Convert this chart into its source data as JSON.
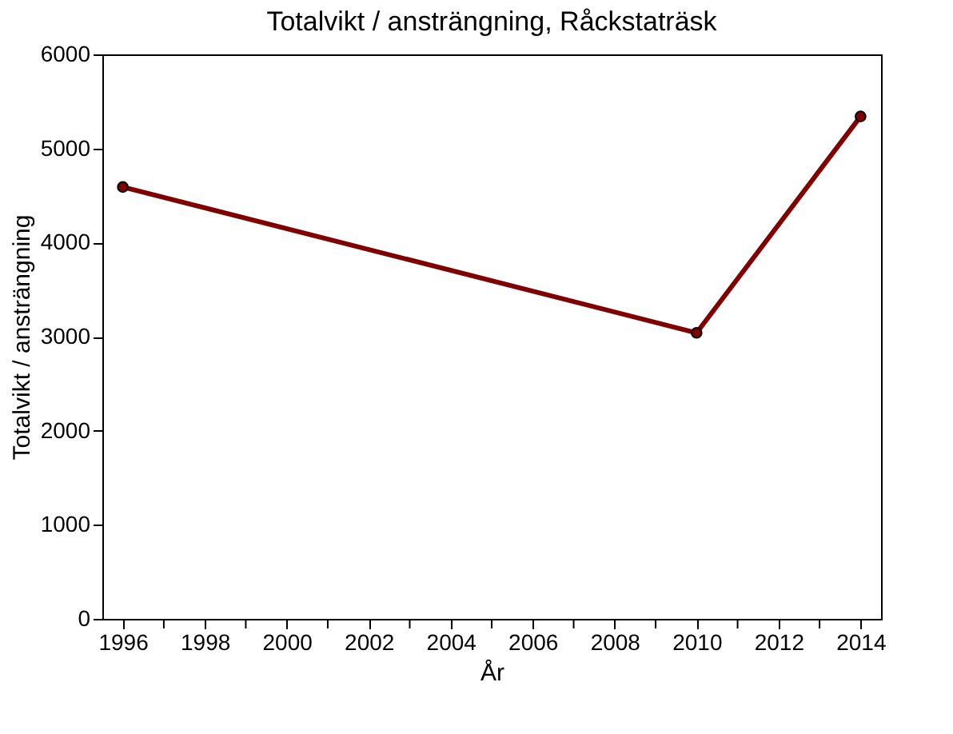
{
  "chart_data": {
    "type": "line",
    "title": "Totalvikt / ansträngning, Råckstaträsk",
    "xlabel": "År",
    "ylabel": "Totalvikt / ansträngning",
    "x": [
      1996,
      2010,
      2014
    ],
    "series": [
      {
        "color": "#800000",
        "values": [
          4590,
          3040,
          5340
        ]
      }
    ],
    "xlim": [
      1995.5,
      2014.5
    ],
    "xticks": [
      1996,
      {
        "value": 1997,
        "label": null
      },
      1998,
      {
        "value": 1999,
        "label": null
      },
      2000,
      {
        "value": 2001,
        "label": null
      },
      2002,
      {
        "value": 2003,
        "label": null
      },
      2004,
      {
        "value": 2005,
        "label": null
      },
      2006,
      {
        "value": 2007,
        "label": null
      },
      2008,
      {
        "value": 2009,
        "label": null
      },
      2010,
      {
        "value": 2011,
        "label": null
      },
      2012,
      {
        "value": 2013,
        "label": null
      },
      2014
    ],
    "ylim": [
      0,
      6000
    ],
    "yticks": [
      0,
      1000,
      2000,
      3000,
      4000,
      5000,
      6000
    ],
    "grid": false,
    "legend": false,
    "marker": "circle",
    "line_style": "solid"
  }
}
